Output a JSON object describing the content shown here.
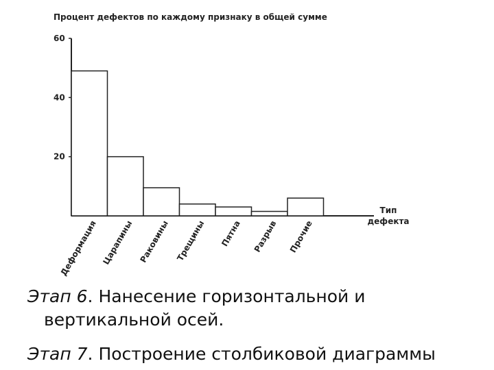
{
  "chart_data": {
    "type": "bar",
    "title": "Процент дефектов по каждому признаку в общей сумме",
    "xlabel": "Тип дефекта",
    "xlabel_lines": [
      "Тип",
      "дефекта"
    ],
    "ylabel": "",
    "ylim": [
      0,
      60
    ],
    "yticks": [
      20,
      40,
      60
    ],
    "categories": [
      "Деформация",
      "Царапины",
      "Раковины",
      "Трещины",
      "Пятна",
      "Разрыв",
      "Прочие"
    ],
    "values": [
      49,
      20,
      9.5,
      4,
      3,
      1.5,
      6
    ],
    "grid": false
  },
  "caption": {
    "line1_stage": "Этап 6",
    "line1_text": ". Нанесение горизонтальной и",
    "line1_cont": "вертикальной осей.",
    "line2_stage": "Этап 7",
    "line2_text": ". Построение столбиковой диаграммы"
  }
}
